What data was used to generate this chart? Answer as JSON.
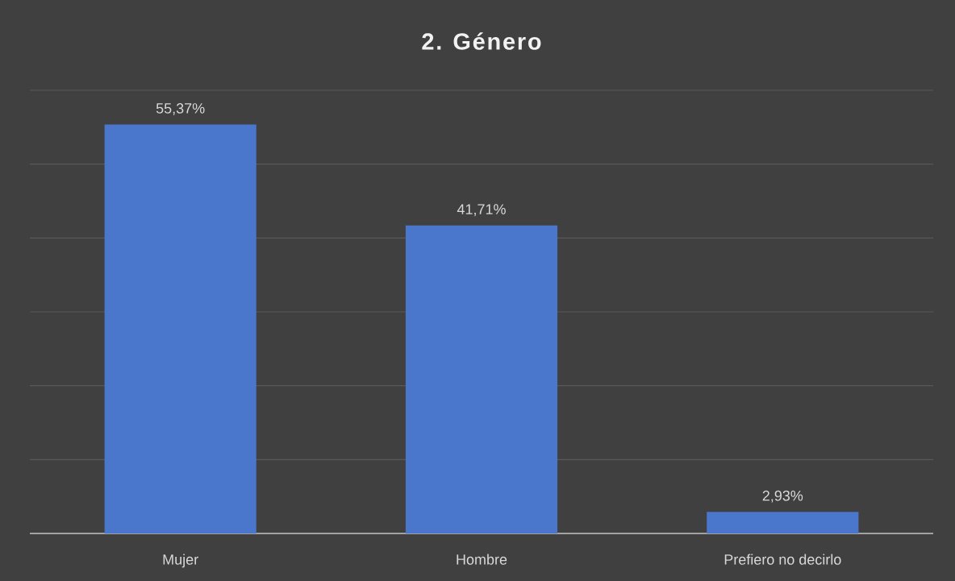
{
  "chart_data": {
    "type": "bar",
    "title": "2. Género",
    "categories": [
      "Mujer",
      "Hombre",
      "Prefiero no decirlo"
    ],
    "values": [
      55.37,
      41.71,
      2.93
    ],
    "value_labels": [
      "55,37%",
      "41,71%",
      "2,93%"
    ],
    "color": "#4a76cc",
    "ylim": [
      0,
      60
    ],
    "yticks": [
      {
        "value": 0,
        "label": null
      },
      {
        "value": 10,
        "label": null
      },
      {
        "value": 20,
        "label": null
      },
      {
        "value": 30,
        "label": null
      },
      {
        "value": 40,
        "label": null
      },
      {
        "value": 50,
        "label": null
      },
      {
        "value": 60,
        "label": null
      }
    ],
    "grid": "y",
    "tick_labels": "x"
  }
}
